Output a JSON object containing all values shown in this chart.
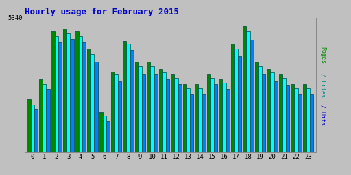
{
  "title": "Hourly usage for February 2015",
  "title_color": "#0000cc",
  "title_fontsize": 9,
  "background_color": "#c0c0c0",
  "plot_bg_color": "#c0c0c0",
  "hours": [
    0,
    1,
    2,
    3,
    4,
    5,
    6,
    7,
    8,
    9,
    10,
    11,
    12,
    13,
    14,
    15,
    16,
    17,
    18,
    19,
    20,
    21,
    22,
    23
  ],
  "pages": [
    2100,
    2900,
    4800,
    4900,
    4800,
    4100,
    1600,
    3200,
    4400,
    3600,
    3600,
    3300,
    3100,
    2700,
    2700,
    3100,
    2900,
    4300,
    5000,
    3600,
    3300,
    3100,
    2700,
    2700
  ],
  "files": [
    1900,
    2700,
    4600,
    4700,
    4600,
    3900,
    1450,
    3100,
    4300,
    3400,
    3400,
    3150,
    2950,
    2550,
    2550,
    2950,
    2750,
    4100,
    4800,
    3400,
    3150,
    2950,
    2550,
    2550
  ],
  "hits": [
    1700,
    2500,
    4350,
    4500,
    4350,
    3600,
    1250,
    2800,
    4050,
    3100,
    3100,
    2900,
    2700,
    2300,
    2300,
    2700,
    2500,
    3800,
    4450,
    3100,
    2800,
    2650,
    2300,
    2300
  ],
  "ytick_value": 5340,
  "pages_color": "#008800",
  "files_color": "#00ffff",
  "hits_color": "#0080ff",
  "bar_edge_color": "#004444",
  "ylim_max": 5340,
  "ylim_min": 0,
  "grid_color": "#b0b0b0",
  "pages_ylabel_color": "#008800",
  "files_ylabel_color": "#008888",
  "hits_ylabel_color": "#0000cc"
}
